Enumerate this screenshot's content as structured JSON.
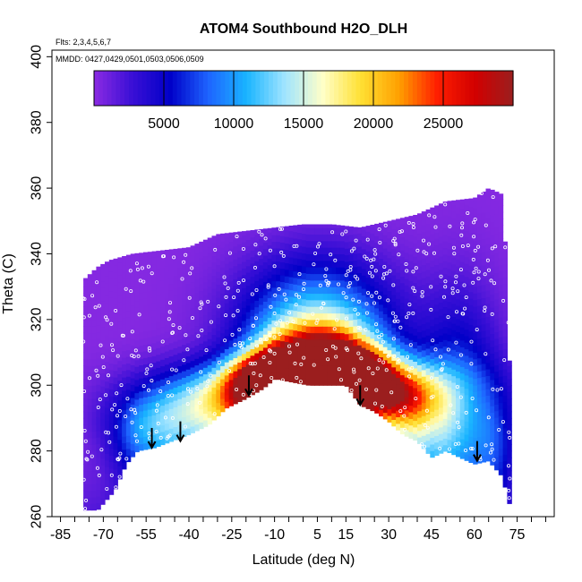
{
  "chart_data": {
    "type": "heatmap",
    "title": "ATOM4 Southbound H2O_DLH",
    "annotations": {
      "flights": "Flts: 2,3,4,5,6,7",
      "dates": "MMDD: 0427,0429,0501,0503,0506,0509"
    },
    "xlabel": "Latitude (deg N)",
    "ylabel": "Theta (C)",
    "xlim": [
      -88,
      88
    ],
    "ylim": [
      260,
      402
    ],
    "x_ticks": [
      -85,
      -70,
      -55,
      -40,
      -25,
      -10,
      5,
      15,
      30,
      45,
      60,
      75
    ],
    "x_tick_labels": [
      "-85",
      "-70",
      "-55",
      "-40",
      "-25",
      "-10",
      "5",
      "15",
      "30",
      "45",
      "60",
      "75"
    ],
    "y_ticks": [
      260,
      280,
      300,
      320,
      340,
      360,
      380,
      400
    ],
    "y_tick_labels": [
      "260",
      "280",
      "300",
      "320",
      "340",
      "360",
      "380",
      "400"
    ],
    "colorbar": {
      "min": 0,
      "max": 30000,
      "ticks": [
        5000,
        10000,
        15000,
        20000,
        25000
      ],
      "tick_labels": [
        "5000",
        "10000",
        "15000",
        "20000",
        "25000"
      ]
    },
    "colors": {
      "stops": [
        "#8b2be2",
        "#3a0fd6",
        "#0000c8",
        "#1e64ff",
        "#19b4ff",
        "#9fe4ff",
        "#ffffc8",
        "#ffe033",
        "#ffa000",
        "#ff1e00",
        "#d20000",
        "#9b1e1e"
      ],
      "background": "#7b22e8"
    },
    "top_envelope": [
      [
        -77,
        332
      ],
      [
        -72,
        336
      ],
      [
        -68,
        338
      ],
      [
        -60,
        340
      ],
      [
        -50,
        341
      ],
      [
        -40,
        342
      ],
      [
        -30,
        346
      ],
      [
        -20,
        347
      ],
      [
        -10,
        348
      ],
      [
        0,
        349
      ],
      [
        10,
        349
      ],
      [
        20,
        348
      ],
      [
        30,
        350
      ],
      [
        40,
        352
      ],
      [
        50,
        356
      ],
      [
        60,
        357
      ],
      [
        65,
        360
      ],
      [
        70,
        358
      ],
      [
        72,
        320
      ],
      [
        73,
        270
      ]
    ],
    "bottom_envelope": [
      [
        -77,
        262
      ],
      [
        -72,
        262
      ],
      [
        -66,
        268
      ],
      [
        -62,
        276
      ],
      [
        -58,
        280
      ],
      [
        -52,
        281
      ],
      [
        -46,
        283
      ],
      [
        -40,
        285
      ],
      [
        -33,
        288
      ],
      [
        -27,
        293
      ],
      [
        -20,
        296
      ],
      [
        -14,
        299
      ],
      [
        -10,
        302
      ],
      [
        -4,
        301
      ],
      [
        2,
        300
      ],
      [
        8,
        300
      ],
      [
        15,
        300
      ],
      [
        20,
        294
      ],
      [
        25,
        292
      ],
      [
        30,
        289
      ],
      [
        35,
        285
      ],
      [
        40,
        283
      ],
      [
        45,
        278
      ],
      [
        50,
        280
      ],
      [
        55,
        278
      ],
      [
        60,
        276
      ],
      [
        65,
        277
      ],
      [
        70,
        272
      ],
      [
        72,
        264
      ]
    ],
    "field_anomalies": [
      {
        "lat": 14,
        "theta": 304,
        "value": 27000,
        "rx": 10,
        "ry": 5
      },
      {
        "lat": -6,
        "theta": 304,
        "value": 25000,
        "rx": 8,
        "ry": 4
      },
      {
        "lat": 5,
        "theta": 308,
        "value": 19000,
        "rx": 14,
        "ry": 8
      },
      {
        "lat": -14,
        "theta": 298,
        "value": 16000,
        "rx": 8,
        "ry": 6
      },
      {
        "lat": 5,
        "theta": 318,
        "value": 12000,
        "rx": 18,
        "ry": 14
      },
      {
        "lat": 5,
        "theta": 300,
        "value": 20000,
        "rx": 25,
        "ry": 6
      },
      {
        "lat": -35,
        "theta": 292,
        "value": 10000,
        "rx": 18,
        "ry": 8
      },
      {
        "lat": 42,
        "theta": 290,
        "value": 9000,
        "rx": 10,
        "ry": 10
      },
      {
        "lat": 30,
        "theta": 296,
        "value": 12000,
        "rx": 10,
        "ry": 6
      },
      {
        "lat": 55,
        "theta": 300,
        "value": 6000,
        "rx": 10,
        "ry": 20
      },
      {
        "lat": 68,
        "theta": 285,
        "value": 4000,
        "rx": 8,
        "ry": 12
      },
      {
        "lat": -55,
        "theta": 285,
        "value": 5000,
        "rx": 10,
        "ry": 8
      }
    ],
    "arrows": [
      {
        "lat": -53,
        "theta": 281
      },
      {
        "lat": -43,
        "theta": 283
      },
      {
        "lat": -19,
        "theta": 297
      },
      {
        "lat": 20,
        "theta": 294
      },
      {
        "lat": 61,
        "theta": 277
      }
    ],
    "legend": "top"
  }
}
